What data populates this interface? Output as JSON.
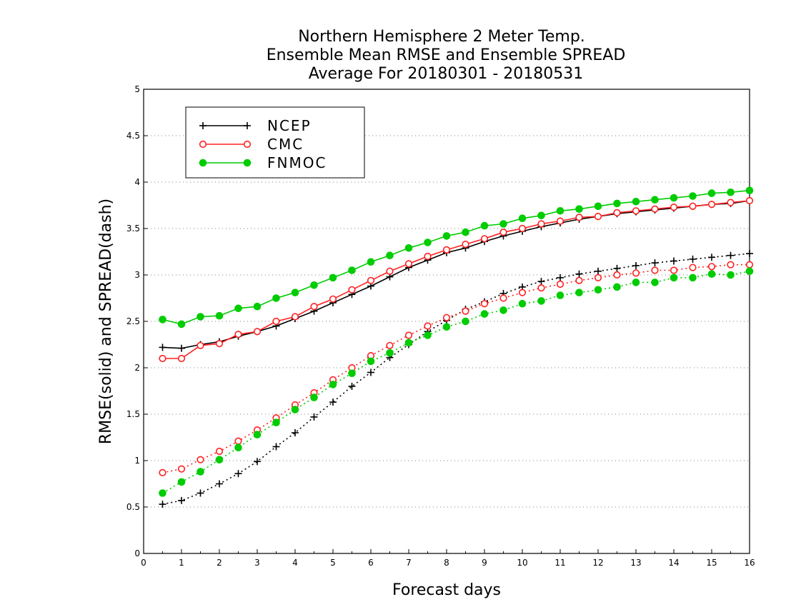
{
  "chart_data": {
    "type": "line",
    "title_lines": [
      "Northern Hemisphere 2 Meter Temp.",
      "Ensemble Mean RMSE and Ensemble SPREAD",
      "Average For 20180301 - 20180531"
    ],
    "xlabel": "Forecast days",
    "ylabel": "RMSE(solid) and SPREAD(dash)",
    "xlim": [
      0,
      16
    ],
    "ylim": [
      0,
      5
    ],
    "xticks": [
      "0",
      "1",
      "2",
      "3",
      "4",
      "5",
      "6",
      "7",
      "8",
      "9",
      "10",
      "11",
      "12",
      "13",
      "14",
      "15",
      "16"
    ],
    "yticks": [
      "0",
      "0.5",
      "1",
      "1.5",
      "2",
      "2.5",
      "3",
      "3.5",
      "4",
      "4.5",
      "5"
    ],
    "grid": "horizontal dotted",
    "legend_position": "top-left",
    "x": [
      0.5,
      1,
      1.5,
      2,
      2.5,
      3,
      3.5,
      4,
      4.5,
      5,
      5.5,
      6,
      6.5,
      7,
      7.5,
      8,
      8.5,
      9,
      9.5,
      10,
      10.5,
      11,
      11.5,
      12,
      12.5,
      13,
      13.5,
      14,
      14.5,
      15,
      15.5,
      16
    ],
    "series": [
      {
        "name": "NCEP",
        "color": "#000000",
        "marker": "plus",
        "rmse": [
          2.22,
          2.21,
          2.25,
          2.28,
          2.34,
          2.39,
          2.45,
          2.53,
          2.61,
          2.7,
          2.79,
          2.88,
          2.98,
          3.08,
          3.16,
          3.24,
          3.29,
          3.36,
          3.42,
          3.47,
          3.52,
          3.56,
          3.6,
          3.63,
          3.66,
          3.68,
          3.7,
          3.72,
          3.74,
          3.76,
          3.77,
          3.8
        ],
        "spread": [
          0.53,
          0.57,
          0.65,
          0.75,
          0.86,
          0.99,
          1.15,
          1.3,
          1.47,
          1.63,
          1.8,
          1.95,
          2.11,
          2.25,
          2.39,
          2.51,
          2.63,
          2.71,
          2.8,
          2.87,
          2.93,
          2.97,
          3.01,
          3.04,
          3.07,
          3.1,
          3.13,
          3.15,
          3.17,
          3.19,
          3.21,
          3.23
        ]
      },
      {
        "name": "CMC",
        "color": "#ff2020",
        "marker": "open-circle",
        "rmse": [
          2.1,
          2.1,
          2.24,
          2.26,
          2.36,
          2.39,
          2.5,
          2.55,
          2.66,
          2.74,
          2.84,
          2.94,
          3.04,
          3.12,
          3.2,
          3.27,
          3.33,
          3.39,
          3.46,
          3.5,
          3.55,
          3.58,
          3.62,
          3.63,
          3.67,
          3.69,
          3.71,
          3.73,
          3.74,
          3.76,
          3.78,
          3.8
        ],
        "spread": [
          0.87,
          0.91,
          1.01,
          1.1,
          1.21,
          1.33,
          1.46,
          1.6,
          1.73,
          1.87,
          2.0,
          2.13,
          2.24,
          2.35,
          2.45,
          2.54,
          2.61,
          2.69,
          2.75,
          2.81,
          2.86,
          2.9,
          2.94,
          2.97,
          3.0,
          3.02,
          3.05,
          3.05,
          3.08,
          3.09,
          3.11,
          3.11
        ]
      },
      {
        "name": "FNMOC",
        "color": "#00cc00",
        "marker": "filled-circle",
        "rmse": [
          2.52,
          2.47,
          2.55,
          2.56,
          2.64,
          2.66,
          2.75,
          2.81,
          2.89,
          2.97,
          3.05,
          3.14,
          3.21,
          3.29,
          3.35,
          3.42,
          3.46,
          3.53,
          3.55,
          3.61,
          3.64,
          3.69,
          3.71,
          3.74,
          3.77,
          3.79,
          3.81,
          3.83,
          3.85,
          3.88,
          3.89,
          3.91
        ],
        "spread": [
          0.65,
          0.77,
          0.88,
          1.01,
          1.14,
          1.28,
          1.41,
          1.55,
          1.68,
          1.82,
          1.94,
          2.07,
          2.16,
          2.27,
          2.35,
          2.44,
          2.5,
          2.58,
          2.62,
          2.69,
          2.72,
          2.78,
          2.81,
          2.84,
          2.87,
          2.92,
          2.92,
          2.97,
          2.97,
          3.01,
          3.0,
          3.04
        ]
      }
    ]
  }
}
